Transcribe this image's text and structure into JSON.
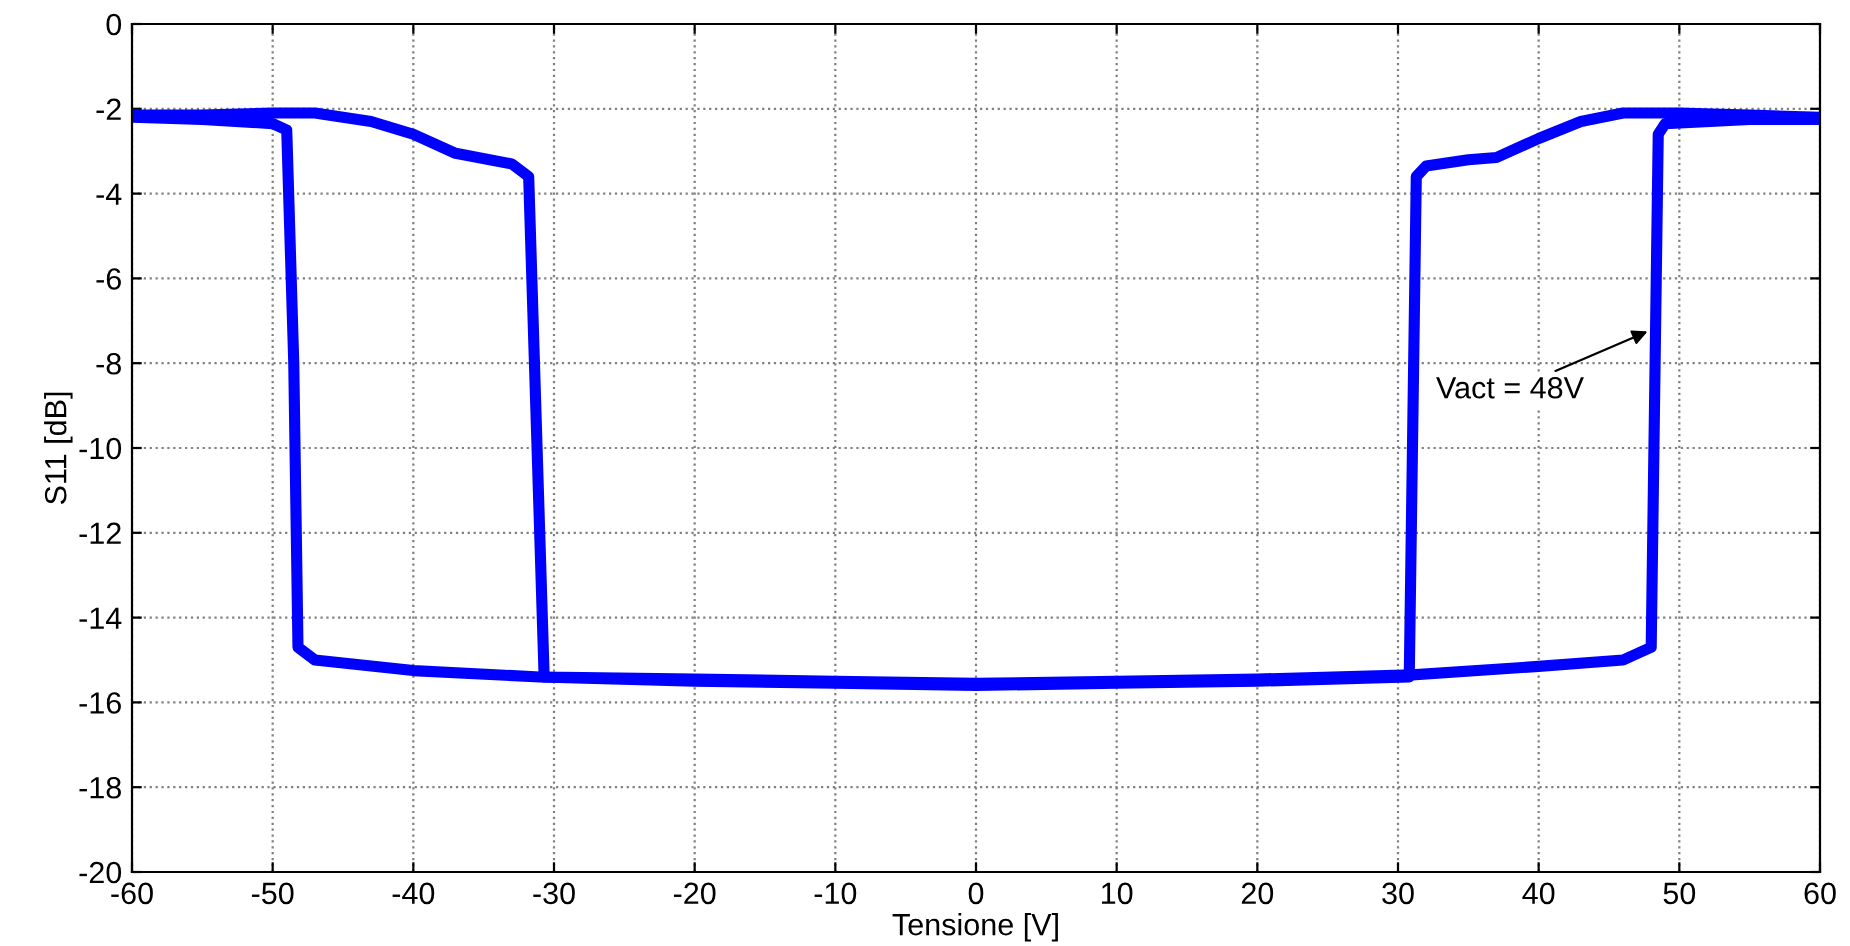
{
  "chart_data": {
    "type": "line",
    "xlabel": "Tensione [V]",
    "ylabel": "S11 [dB]",
    "xlim": [
      -60,
      60
    ],
    "ylim": [
      -20,
      0
    ],
    "xticks": [
      -60,
      -50,
      -40,
      -30,
      -20,
      -10,
      0,
      10,
      20,
      30,
      40,
      50,
      60
    ],
    "yticks": [
      -20,
      -18,
      -16,
      -14,
      -12,
      -10,
      -8,
      -6,
      -4,
      -2,
      0
    ],
    "grid": true,
    "line_style": "solid",
    "marker": "none",
    "series": [
      {
        "color": "#0000ff",
        "x": [
          -60,
          -55,
          -50,
          -49,
          -48.5,
          -48.2,
          -47,
          -40,
          -31,
          -20,
          -10,
          0,
          10,
          20,
          30.8,
          31.3,
          32,
          35,
          37,
          40,
          43,
          46,
          50,
          55,
          60
        ],
        "values": [
          -2.2,
          -2.25,
          -2.35,
          -2.5,
          -8,
          -14.7,
          -15.0,
          -15.25,
          -15.4,
          -15.5,
          -15.55,
          -15.6,
          -15.55,
          -15.5,
          -15.4,
          -3.6,
          -3.35,
          -3.2,
          -3.15,
          -2.7,
          -2.3,
          -2.1,
          -2.1,
          -2.15,
          -2.2
        ]
      },
      {
        "color": "#0000ff",
        "x": [
          60,
          55,
          49,
          48.5,
          48,
          46,
          40,
          31,
          20,
          10,
          0,
          -10,
          -20,
          -30.7,
          -31.8,
          -33,
          -37,
          -40,
          -43,
          -47,
          -50,
          -55,
          -60
        ],
        "values": [
          -2.25,
          -2.25,
          -2.35,
          -2.6,
          -14.7,
          -15.0,
          -15.15,
          -15.35,
          -15.45,
          -15.5,
          -15.55,
          -15.5,
          -15.45,
          -15.4,
          -3.6,
          -3.3,
          -3.05,
          -2.6,
          -2.3,
          -2.1,
          -2.1,
          -2.15,
          -2.15
        ]
      }
    ],
    "annotations": [
      {
        "text": "Vact = 48V",
        "x": 48.1,
        "y": -7.2
      }
    ]
  }
}
